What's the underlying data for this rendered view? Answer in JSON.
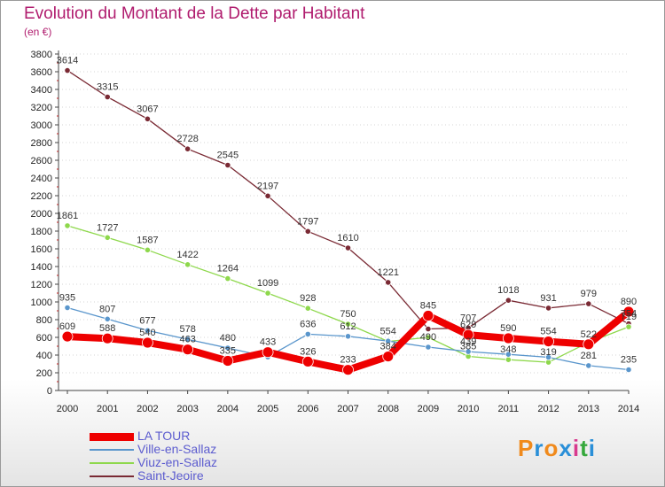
{
  "title": "Evolution du Montant de la Dette par Habitant",
  "subtitle": "(en €)",
  "logo": {
    "text": "Proxiti",
    "colors": [
      "#f08a1c",
      "#2a8fd8",
      "#f08a1c",
      "#2a8fd8",
      "#d83a8e",
      "#35a83c",
      "#2a8fd8"
    ]
  },
  "chart_data": {
    "type": "line",
    "x": [
      "2000",
      "2001",
      "2002",
      "2003",
      "2004",
      "2005",
      "2006",
      "2007",
      "2008",
      "2009",
      "2010",
      "2011",
      "2012",
      "2013",
      "2014"
    ],
    "ylim": [
      0,
      3800
    ],
    "yticks": [
      0,
      200,
      400,
      600,
      800,
      1000,
      1200,
      1400,
      1600,
      1800,
      2000,
      2200,
      2400,
      2600,
      2800,
      3000,
      3200,
      3400,
      3600,
      3800
    ],
    "legend_position": "bottom-left",
    "series": [
      {
        "name": "Saint-Jeoire",
        "color": "#7a2a34",
        "width": 1.3,
        "values": [
          3614,
          3315,
          3067,
          2728,
          2545,
          2197,
          1797,
          1610,
          1221,
          695,
          707,
          1018,
          931,
          979,
          754
        ],
        "labels": [
          "3614",
          "3315",
          "3067",
          "2728",
          "2545",
          "2197",
          "1797",
          "1610",
          "1221",
          "",
          "707",
          "1018",
          "931",
          "979",
          "754"
        ]
      },
      {
        "name": "Viuz-en-Sallaz",
        "color": "#8ed84c",
        "width": 1.3,
        "values": [
          1861,
          1727,
          1587,
          1422,
          1264,
          1099,
          928,
          750,
          554,
          600,
          385,
          348,
          319,
          543,
          719
        ],
        "labels": [
          "1861",
          "1727",
          "1587",
          "1422",
          "1264",
          "1099",
          "928",
          "750",
          "554",
          "",
          "385",
          "348",
          "319",
          "",
          "719"
        ]
      },
      {
        "name": "Ville-en-Sallaz",
        "color": "#5a96cc",
        "width": 1.3,
        "values": [
          935,
          807,
          677,
          578,
          480,
          379,
          636,
          612,
          558,
          490,
          439,
          408,
          375,
          281,
          235
        ],
        "labels": [
          "935",
          "807",
          "677",
          "578",
          "480",
          "",
          "636",
          "612",
          "",
          "490",
          "439",
          "",
          "",
          "281",
          "235"
        ]
      },
      {
        "name": "LA TOUR",
        "color": "#ee0000",
        "width": 8,
        "values": [
          609,
          588,
          540,
          463,
          335,
          433,
          326,
          233,
          384,
          845,
          629,
          590,
          554,
          522,
          890
        ],
        "labels": [
          "609",
          "588",
          "540",
          "463",
          "335",
          "433",
          "326",
          "233",
          "384",
          "845",
          "629",
          "590",
          "554",
          "522",
          "890"
        ]
      }
    ]
  }
}
